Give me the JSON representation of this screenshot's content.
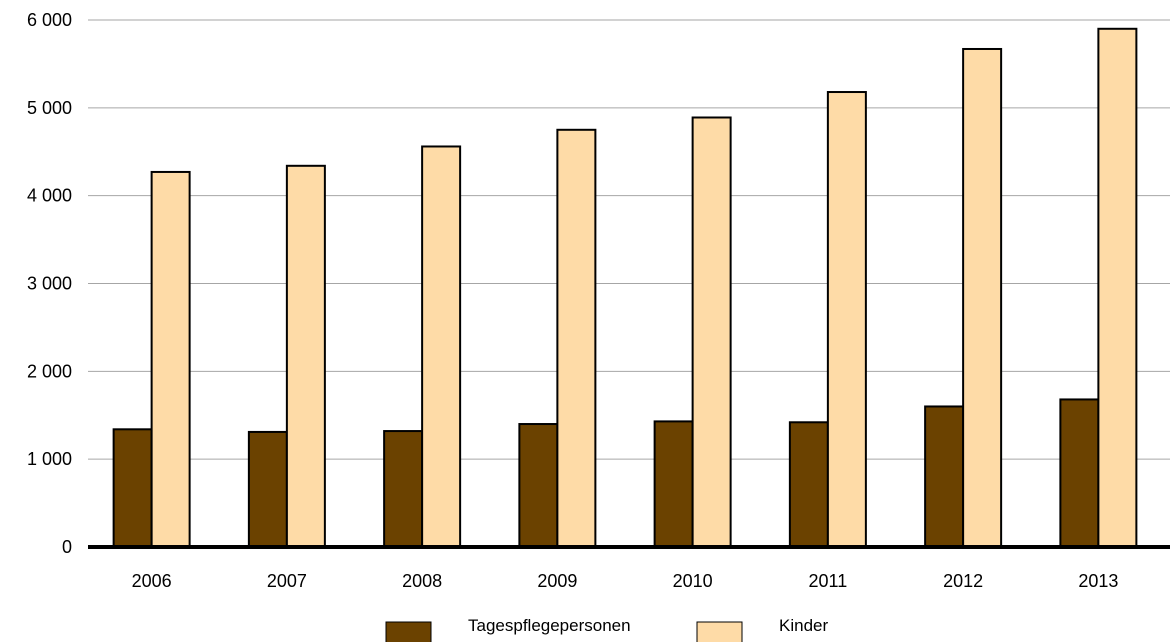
{
  "chart_data": {
    "type": "bar",
    "title": "",
    "xlabel": "",
    "ylabel": "",
    "categories": [
      "2006",
      "2007",
      "2008",
      "2009",
      "2010",
      "2011",
      "2012",
      "2013"
    ],
    "series": [
      {
        "name": "Tagespflegepersonen",
        "color": "#6b4200",
        "values": [
          1340,
          1310,
          1320,
          1400,
          1430,
          1420,
          1600,
          1680
        ]
      },
      {
        "name": "Kinder",
        "color": "#fedba7",
        "values": [
          4270,
          4340,
          4560,
          4750,
          4890,
          5180,
          5670,
          5900
        ]
      }
    ],
    "ylim": [
      0,
      6000
    ],
    "yticks": [
      0,
      1000,
      2000,
      3000,
      4000,
      5000,
      6000
    ],
    "ytick_labels": [
      "0",
      "1 000",
      "2 000",
      "3 000",
      "4 000",
      "5 000",
      "6 000"
    ],
    "grid": true,
    "legend_position": "bottom"
  }
}
